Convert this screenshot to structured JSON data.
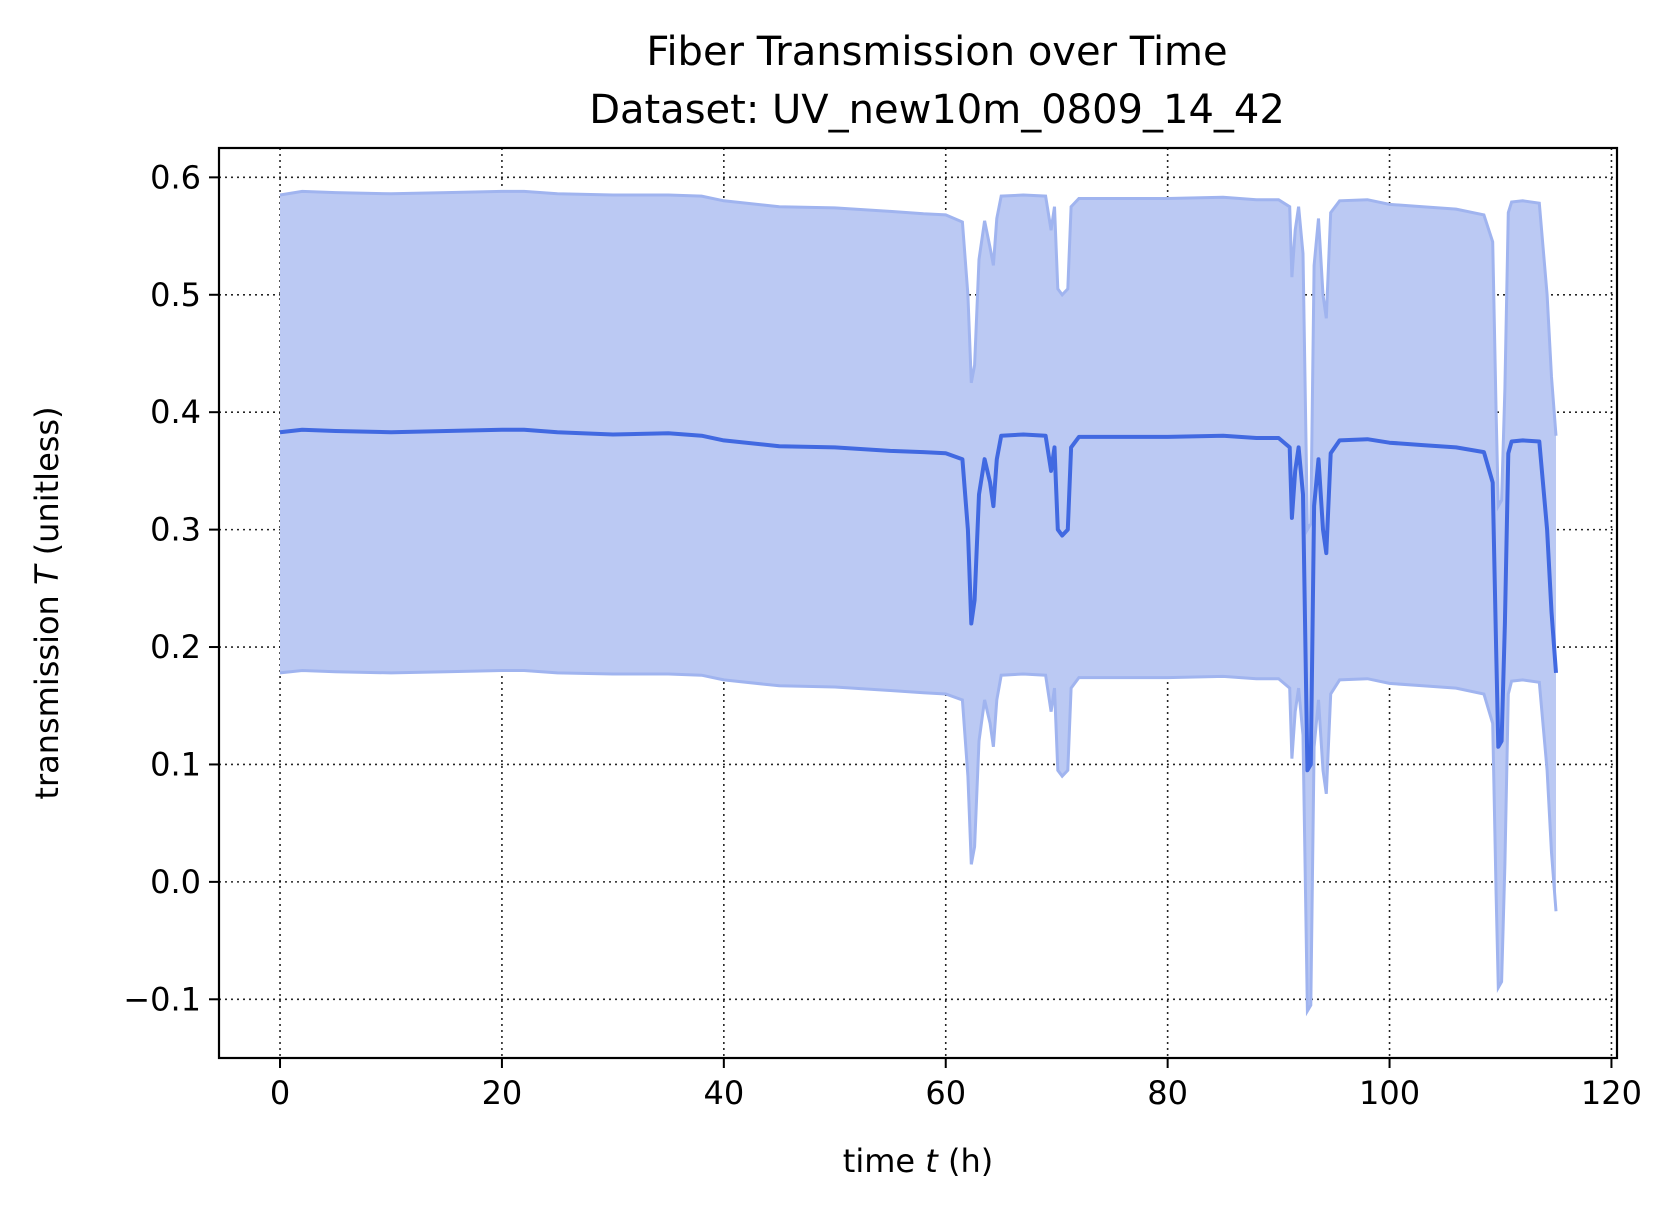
{
  "chart_data": {
    "type": "line",
    "title": "Fiber Transmission over Time",
    "subtitle": "Dataset: UV_new10m_0809_14_42",
    "xlabel_prefix": "time ",
    "xlabel_var": "t",
    "xlabel_suffix": " (h)",
    "ylabel_prefix": "transmission ",
    "ylabel_var": "T",
    "ylabel_suffix": " (unitless)",
    "xlim": [
      -5.5,
      120.5
    ],
    "ylim": [
      -0.15,
      0.625
    ],
    "xticks": [
      0,
      20,
      40,
      60,
      80,
      100,
      120
    ],
    "yticks": [
      -0.1,
      0.0,
      0.1,
      0.2,
      0.3,
      0.4,
      0.5,
      0.6
    ],
    "ytick_labels": [
      "−0.1",
      "0.0",
      "0.1",
      "0.2",
      "0.3",
      "0.4",
      "0.5",
      "0.6"
    ],
    "grid": true,
    "colors": {
      "line": "#4169e1",
      "band": "#bbc9f3",
      "band_edge": "#a0b4ef"
    },
    "series": [
      {
        "x": [
          0,
          2,
          5,
          10,
          15,
          20,
          22,
          25,
          30,
          35,
          38,
          40,
          45,
          50,
          55,
          58,
          60,
          61.5,
          62,
          62.3,
          62.6,
          63,
          63.5,
          64,
          64.3,
          64.6,
          65,
          67,
          69,
          69.5,
          69.8,
          70.1,
          70.5,
          71,
          71.3,
          72,
          75,
          80,
          85,
          88,
          90,
          91,
          91.2,
          91.5,
          91.8,
          92.2,
          92.6,
          92.9,
          93.2,
          93.6,
          94,
          94.3,
          94.7,
          95.5,
          98,
          100,
          103,
          106,
          108.5,
          109.3,
          109.6,
          109.8,
          110.1,
          110.4,
          110.7,
          111,
          112,
          113.5,
          114.2,
          114.6,
          115
        ],
        "mean": [
          0.383,
          0.385,
          0.384,
          0.383,
          0.384,
          0.385,
          0.385,
          0.383,
          0.381,
          0.382,
          0.38,
          0.376,
          0.371,
          0.37,
          0.367,
          0.366,
          0.365,
          0.36,
          0.3,
          0.22,
          0.24,
          0.33,
          0.36,
          0.34,
          0.32,
          0.36,
          0.38,
          0.381,
          0.38,
          0.35,
          0.37,
          0.3,
          0.295,
          0.3,
          0.37,
          0.379,
          0.379,
          0.379,
          0.38,
          0.378,
          0.378,
          0.37,
          0.31,
          0.35,
          0.37,
          0.33,
          0.095,
          0.1,
          0.32,
          0.36,
          0.3,
          0.28,
          0.365,
          0.376,
          0.377,
          0.374,
          0.372,
          0.37,
          0.366,
          0.34,
          0.2,
          0.115,
          0.12,
          0.22,
          0.365,
          0.375,
          0.376,
          0.375,
          0.3,
          0.23,
          0.178
        ],
        "upper": [
          0.585,
          0.588,
          0.587,
          0.586,
          0.587,
          0.588,
          0.588,
          0.586,
          0.585,
          0.585,
          0.584,
          0.58,
          0.575,
          0.574,
          0.571,
          0.569,
          0.568,
          0.562,
          0.5,
          0.425,
          0.44,
          0.53,
          0.563,
          0.54,
          0.525,
          0.565,
          0.584,
          0.585,
          0.584,
          0.555,
          0.575,
          0.505,
          0.5,
          0.505,
          0.575,
          0.582,
          0.582,
          0.582,
          0.583,
          0.581,
          0.581,
          0.575,
          0.515,
          0.555,
          0.575,
          0.535,
          0.3,
          0.305,
          0.525,
          0.565,
          0.5,
          0.48,
          0.57,
          0.58,
          0.581,
          0.577,
          0.575,
          0.573,
          0.568,
          0.545,
          0.4,
          0.32,
          0.325,
          0.42,
          0.57,
          0.579,
          0.58,
          0.578,
          0.5,
          0.43,
          0.38
        ],
        "lower": [
          0.178,
          0.18,
          0.179,
          0.178,
          0.179,
          0.18,
          0.18,
          0.178,
          0.177,
          0.177,
          0.176,
          0.172,
          0.167,
          0.166,
          0.163,
          0.161,
          0.16,
          0.155,
          0.09,
          0.015,
          0.03,
          0.12,
          0.155,
          0.135,
          0.115,
          0.155,
          0.176,
          0.177,
          0.176,
          0.145,
          0.165,
          0.095,
          0.09,
          0.095,
          0.165,
          0.174,
          0.174,
          0.174,
          0.175,
          0.173,
          0.173,
          0.165,
          0.105,
          0.145,
          0.165,
          0.125,
          -0.11,
          -0.105,
          0.115,
          0.155,
          0.095,
          0.075,
          0.16,
          0.172,
          0.173,
          0.169,
          0.167,
          0.165,
          0.16,
          0.135,
          -0.01,
          -0.09,
          -0.085,
          0.015,
          0.16,
          0.171,
          0.172,
          0.17,
          0.095,
          0.025,
          -0.025
        ]
      }
    ]
  }
}
